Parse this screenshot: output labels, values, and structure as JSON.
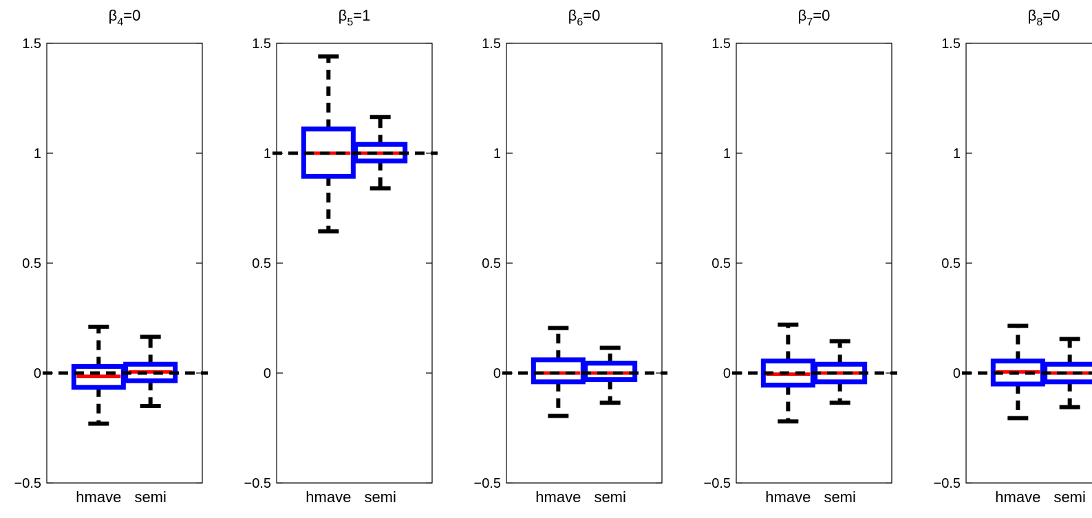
{
  "figure": {
    "colors": {
      "box": "#0000ff",
      "median": "#ff0000",
      "whisker": "#000000",
      "reference": "#000000"
    }
  },
  "chart_data": [
    {
      "type": "boxplot",
      "title": "β4=0",
      "title_parts": {
        "symbol": "β",
        "sub": "4",
        "rest": "=0"
      },
      "categories": [
        "hmave",
        "semi"
      ],
      "ylim": [
        -0.5,
        1.5
      ],
      "yticks": [
        -0.5,
        0,
        0.5,
        1,
        1.5
      ],
      "ytick_labels": [
        "−0.5",
        "0",
        "0.5",
        "1",
        "1.5"
      ],
      "reference_line": 0,
      "boxes": [
        {
          "label": "hmave",
          "whisker_low": -0.23,
          "q1": -0.065,
          "median": -0.015,
          "q3": 0.03,
          "whisker_high": 0.21
        },
        {
          "label": "semi",
          "whisker_low": -0.15,
          "q1": -0.035,
          "median": 0.005,
          "q3": 0.04,
          "whisker_high": 0.165
        }
      ]
    },
    {
      "type": "boxplot",
      "title": "β5=1",
      "title_parts": {
        "symbol": "β",
        "sub": "5",
        "rest": "=1"
      },
      "categories": [
        "hmave",
        "semi"
      ],
      "ylim": [
        -0.5,
        1.5
      ],
      "yticks": [
        -0.5,
        0,
        0.5,
        1,
        1.5
      ],
      "ytick_labels": [
        "−0.5",
        "0",
        "0.5",
        "1",
        "1.5"
      ],
      "reference_line": 1,
      "boxes": [
        {
          "label": "hmave",
          "whisker_low": 0.645,
          "q1": 0.895,
          "median": 1.0,
          "q3": 1.11,
          "whisker_high": 1.44
        },
        {
          "label": "semi",
          "whisker_low": 0.84,
          "q1": 0.965,
          "median": 1.0,
          "q3": 1.04,
          "whisker_high": 1.165
        }
      ]
    },
    {
      "type": "boxplot",
      "title": "β6=0",
      "title_parts": {
        "symbol": "β",
        "sub": "6",
        "rest": "=0"
      },
      "categories": [
        "hmave",
        "semi"
      ],
      "ylim": [
        -0.5,
        1.5
      ],
      "yticks": [
        -0.5,
        0,
        0.5,
        1,
        1.5
      ],
      "ytick_labels": [
        "−0.5",
        "0",
        "0.5",
        "1",
        "1.5"
      ],
      "reference_line": 0,
      "boxes": [
        {
          "label": "hmave",
          "whisker_low": -0.195,
          "q1": -0.04,
          "median": 0.0,
          "q3": 0.06,
          "whisker_high": 0.205
        },
        {
          "label": "semi",
          "whisker_low": -0.135,
          "q1": -0.03,
          "median": 0.0,
          "q3": 0.045,
          "whisker_high": 0.115
        }
      ]
    },
    {
      "type": "boxplot",
      "title": "β7=0",
      "title_parts": {
        "symbol": "β",
        "sub": "7",
        "rest": "=0"
      },
      "categories": [
        "hmave",
        "semi"
      ],
      "ylim": [
        -0.5,
        1.5
      ],
      "yticks": [
        -0.5,
        0,
        0.5,
        1,
        1.5
      ],
      "ytick_labels": [
        "−0.5",
        "0",
        "0.5",
        "1",
        "1.5"
      ],
      "reference_line": 0,
      "boxes": [
        {
          "label": "hmave",
          "whisker_low": -0.22,
          "q1": -0.055,
          "median": -0.005,
          "q3": 0.055,
          "whisker_high": 0.22
        },
        {
          "label": "semi",
          "whisker_low": -0.135,
          "q1": -0.04,
          "median": 0.0,
          "q3": 0.04,
          "whisker_high": 0.145
        }
      ]
    },
    {
      "type": "boxplot",
      "title": "β8=0",
      "title_parts": {
        "symbol": "β",
        "sub": "8",
        "rest": "=0"
      },
      "categories": [
        "hmave",
        "semi"
      ],
      "ylim": [
        -0.5,
        1.5
      ],
      "yticks": [
        -0.5,
        0,
        0.5,
        1,
        1.5
      ],
      "ytick_labels": [
        "−0.5",
        "0",
        "0.5",
        "1",
        "1.5"
      ],
      "reference_line": 0,
      "boxes": [
        {
          "label": "hmave",
          "whisker_low": -0.205,
          "q1": -0.05,
          "median": 0.005,
          "q3": 0.055,
          "whisker_high": 0.215
        },
        {
          "label": "semi",
          "whisker_low": -0.155,
          "q1": -0.04,
          "median": 0.0,
          "q3": 0.04,
          "whisker_high": 0.155
        }
      ]
    }
  ]
}
